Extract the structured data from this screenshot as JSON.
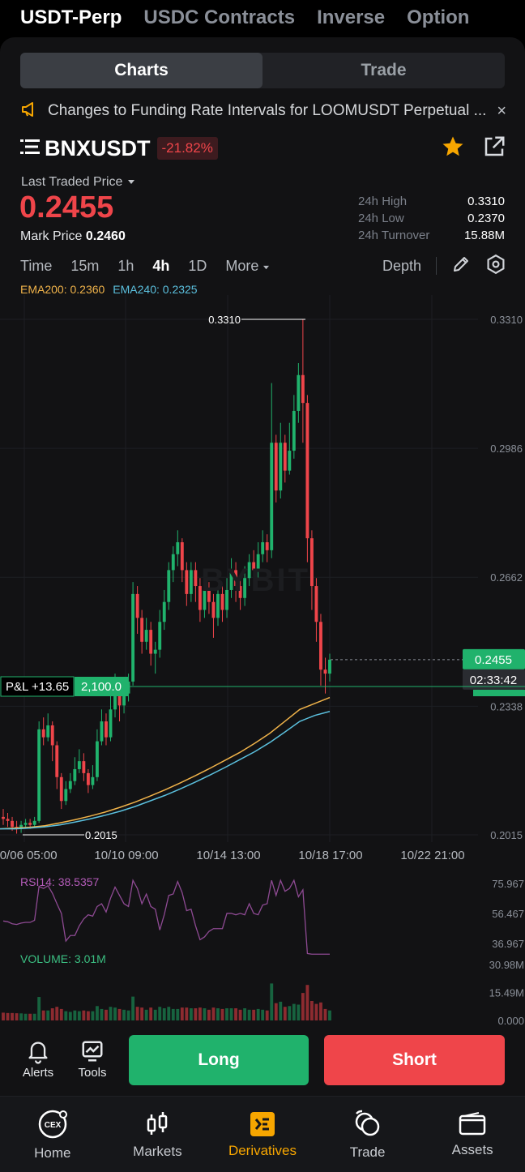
{
  "top_tabs": [
    "USDT-Perp",
    "USDC Contracts",
    "Inverse",
    "Option"
  ],
  "segment": {
    "charts": "Charts",
    "trade": "Trade"
  },
  "notice": {
    "text": "Changes to Funding Rate Intervals for LOOMUSDT Perpetual ...",
    "close": "×"
  },
  "symbol": {
    "name": "BNXUSDT",
    "change": "-21.82%"
  },
  "price": {
    "last_label": "Last Traded Price",
    "last": "0.2455",
    "mark_label": "Mark Price",
    "mark": "0.2460"
  },
  "stats": [
    {
      "label": "24h High",
      "value": "0.3310"
    },
    {
      "label": "24h Low",
      "value": "0.2370"
    },
    {
      "label": "24h Turnover",
      "value": "15.88M"
    }
  ],
  "timeframes": [
    "Time",
    "15m",
    "1h",
    "4h",
    "1D",
    "More"
  ],
  "active_timeframe": "4h",
  "depth_label": "Depth",
  "ema": {
    "ema200": "EMA200: 0.2360",
    "ema240": "EMA240: 0.2325"
  },
  "watermark": "BYBIT",
  "chart_data": {
    "type": "candlestick",
    "y_ticks": [
      "0.3310",
      "0.2986",
      "0.2662",
      "0.2338",
      "0.2015"
    ],
    "x_ticks": [
      "10/06 05:00",
      "10/10 09:00",
      "10/14 13:00",
      "10/18 17:00",
      "10/22 21:00"
    ],
    "ylim": [
      0.2015,
      0.331
    ],
    "high_label": "0.3310",
    "low_label": "0.2015",
    "last_price_tag": "0.2455",
    "countdown": "02:33:42",
    "pnl_label": "P&L +13.65",
    "position_size": "2,100.0",
    "candles": [
      [
        0.206,
        0.2055,
        0.208,
        0.204
      ],
      [
        0.2055,
        0.205,
        0.207,
        0.2035
      ],
      [
        0.205,
        0.2035,
        0.206,
        0.2025
      ],
      [
        0.2035,
        0.203,
        0.205,
        0.2018
      ],
      [
        0.203,
        0.204,
        0.205,
        0.202
      ],
      [
        0.204,
        0.2045,
        0.2055,
        0.203
      ],
      [
        0.2045,
        0.204,
        0.2055,
        0.203
      ],
      [
        0.204,
        0.205,
        0.206,
        0.2035
      ],
      [
        0.205,
        0.228,
        0.23,
        0.2045
      ],
      [
        0.228,
        0.226,
        0.231,
        0.224
      ],
      [
        0.226,
        0.229,
        0.232,
        0.225
      ],
      [
        0.229,
        0.224,
        0.23,
        0.22
      ],
      [
        0.224,
        0.216,
        0.225,
        0.213
      ],
      [
        0.216,
        0.21,
        0.217,
        0.208
      ],
      [
        0.21,
        0.213,
        0.215,
        0.209
      ],
      [
        0.213,
        0.215,
        0.217,
        0.212
      ],
      [
        0.215,
        0.218,
        0.221,
        0.214
      ],
      [
        0.218,
        0.22,
        0.223,
        0.217
      ],
      [
        0.22,
        0.217,
        0.222,
        0.215
      ],
      [
        0.217,
        0.214,
        0.218,
        0.212
      ],
      [
        0.214,
        0.216,
        0.219,
        0.213
      ],
      [
        0.216,
        0.225,
        0.228,
        0.215
      ],
      [
        0.225,
        0.23,
        0.233,
        0.224
      ],
      [
        0.23,
        0.226,
        0.232,
        0.224
      ],
      [
        0.226,
        0.233,
        0.237,
        0.225
      ],
      [
        0.233,
        0.238,
        0.242,
        0.231
      ],
      [
        0.238,
        0.234,
        0.239,
        0.23
      ],
      [
        0.234,
        0.237,
        0.24,
        0.232
      ],
      [
        0.237,
        0.24,
        0.242,
        0.235
      ],
      [
        0.24,
        0.262,
        0.265,
        0.239
      ],
      [
        0.262,
        0.256,
        0.264,
        0.252
      ],
      [
        0.256,
        0.25,
        0.258,
        0.247
      ],
      [
        0.25,
        0.253,
        0.256,
        0.248
      ],
      [
        0.253,
        0.247,
        0.255,
        0.244
      ],
      [
        0.247,
        0.248,
        0.25,
        0.242
      ],
      [
        0.248,
        0.255,
        0.258,
        0.246
      ],
      [
        0.255,
        0.26,
        0.263,
        0.253
      ],
      [
        0.26,
        0.268,
        0.27,
        0.258
      ],
      [
        0.268,
        0.272,
        0.274,
        0.265
      ],
      [
        0.272,
        0.275,
        0.278,
        0.269
      ],
      [
        0.275,
        0.268,
        0.276,
        0.265
      ],
      [
        0.268,
        0.262,
        0.27,
        0.259
      ],
      [
        0.262,
        0.268,
        0.27,
        0.26
      ],
      [
        0.268,
        0.264,
        0.27,
        0.26
      ],
      [
        0.264,
        0.258,
        0.266,
        0.255
      ],
      [
        0.258,
        0.263,
        0.266,
        0.256
      ],
      [
        0.263,
        0.26,
        0.265,
        0.257
      ],
      [
        0.26,
        0.256,
        0.262,
        0.251
      ],
      [
        0.256,
        0.262,
        0.264,
        0.254
      ],
      [
        0.262,
        0.258,
        0.264,
        0.255
      ],
      [
        0.258,
        0.263,
        0.266,
        0.256
      ],
      [
        0.263,
        0.268,
        0.271,
        0.261
      ],
      [
        0.268,
        0.264,
        0.27,
        0.26
      ],
      [
        0.264,
        0.261,
        0.266,
        0.258
      ],
      [
        0.261,
        0.266,
        0.269,
        0.259
      ],
      [
        0.266,
        0.27,
        0.272,
        0.264
      ],
      [
        0.27,
        0.268,
        0.273,
        0.265
      ],
      [
        0.268,
        0.272,
        0.275,
        0.266
      ],
      [
        0.272,
        0.275,
        0.278,
        0.27
      ],
      [
        0.275,
        0.273,
        0.277,
        0.27
      ],
      [
        0.273,
        0.3,
        0.315,
        0.271
      ],
      [
        0.3,
        0.288,
        0.302,
        0.285
      ],
      [
        0.288,
        0.3,
        0.305,
        0.286
      ],
      [
        0.3,
        0.293,
        0.302,
        0.29
      ],
      [
        0.293,
        0.298,
        0.305,
        0.292
      ],
      [
        0.298,
        0.308,
        0.312,
        0.296
      ],
      [
        0.308,
        0.317,
        0.32,
        0.305
      ],
      [
        0.317,
        0.31,
        0.331,
        0.3
      ],
      [
        0.31,
        0.276,
        0.312,
        0.27
      ],
      [
        0.276,
        0.264,
        0.278,
        0.258
      ],
      [
        0.264,
        0.255,
        0.266,
        0.25
      ],
      [
        0.255,
        0.243,
        0.257,
        0.239
      ],
      [
        0.243,
        0.242,
        0.246,
        0.237
      ],
      [
        0.242,
        0.2455,
        0.247,
        0.24
      ]
    ],
    "ema200": [
      0.203,
      0.2032,
      0.2034,
      0.2038,
      0.2045,
      0.2053,
      0.2062,
      0.2072,
      0.2084,
      0.2097,
      0.2112,
      0.2128,
      0.2145,
      0.2163,
      0.2182,
      0.2202,
      0.2222,
      0.2245,
      0.227,
      0.23,
      0.233,
      0.2345,
      0.236
    ],
    "ema240": [
      0.203,
      0.203,
      0.2032,
      0.2035,
      0.204,
      0.2047,
      0.2055,
      0.2064,
      0.2074,
      0.2086,
      0.21,
      0.2114,
      0.213,
      0.2147,
      0.2165,
      0.2184,
      0.2204,
      0.2224,
      0.2247,
      0.2273,
      0.23,
      0.2315,
      0.2325
    ],
    "rsi": {
      "label": "RSI14: 38.5357",
      "ticks": [
        "75.967",
        "56.467",
        "36.967"
      ]
    },
    "volume": {
      "label": "VOLUME: 3.01M",
      "ticks": [
        "30.98M",
        "15.49M",
        "0.000"
      ]
    }
  },
  "actions": {
    "alerts": "Alerts",
    "tools": "Tools",
    "long": "Long",
    "short": "Short"
  },
  "bottom_nav": [
    {
      "label": "Home",
      "icon": "cex-icon"
    },
    {
      "label": "Markets",
      "icon": "markets-icon"
    },
    {
      "label": "Derivatives",
      "icon": "derivatives-icon"
    },
    {
      "label": "Trade",
      "icon": "trade-icon"
    },
    {
      "label": "Assets",
      "icon": "wallet-icon"
    }
  ],
  "colors": {
    "accent": "#f7a600",
    "up": "#20b26c",
    "down": "#ef454a",
    "panel": "#121214"
  }
}
